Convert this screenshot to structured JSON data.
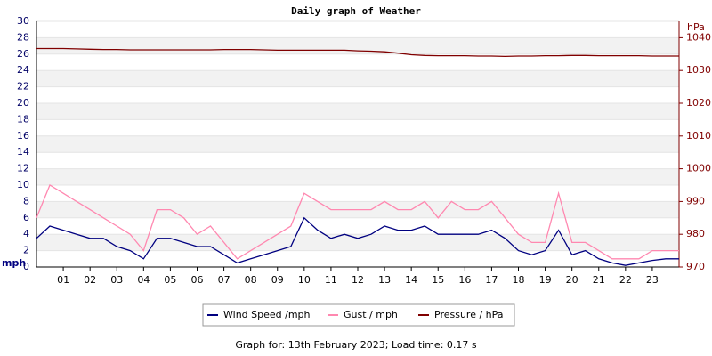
{
  "chart_data": {
    "type": "line",
    "title": "Daily graph of Weather",
    "y_unit": "mph",
    "y2_unit": "hPa",
    "footer": "Graph for: 13th February 2023; Load time: 0.17 s",
    "x": [
      0,
      0.5,
      1,
      1.5,
      2,
      2.5,
      3,
      3.5,
      4,
      4.5,
      5,
      5.5,
      6,
      6.5,
      7,
      7.5,
      8,
      8.5,
      9,
      9.5,
      10,
      10.5,
      11,
      11.5,
      12,
      12.5,
      13,
      13.5,
      14,
      14.5,
      15,
      15.5,
      16,
      16.5,
      17,
      17.5,
      18,
      18.5,
      19,
      19.5,
      20,
      20.5,
      21,
      21.5,
      22,
      22.5,
      23,
      23.5,
      24
    ],
    "xlim": [
      0,
      24
    ],
    "xticks": [
      {
        "value": 1,
        "label": "01"
      },
      {
        "value": 2,
        "label": "02"
      },
      {
        "value": 3,
        "label": "03"
      },
      {
        "value": 4,
        "label": "04"
      },
      {
        "value": 5,
        "label": "05"
      },
      {
        "value": 6,
        "label": "06"
      },
      {
        "value": 7,
        "label": "07"
      },
      {
        "value": 8,
        "label": "08"
      },
      {
        "value": 9,
        "label": "09"
      },
      10,
      11,
      12,
      13,
      14,
      15,
      16,
      17,
      18,
      19,
      20,
      21,
      22,
      23
    ],
    "ylim": [
      0,
      30
    ],
    "yticks": [
      0,
      2,
      4,
      6,
      8,
      10,
      12,
      14,
      16,
      18,
      20,
      22,
      24,
      26,
      28,
      30
    ],
    "y2lim": [
      970,
      1045
    ],
    "y2ticks": [
      970,
      980,
      990,
      1000,
      1010,
      1020,
      1030,
      1040
    ],
    "grid": true,
    "series": [
      {
        "name": "Wind Speed /mph",
        "color": "#000080",
        "values": [
          3.5,
          5,
          4.5,
          4,
          3.5,
          3.5,
          2.5,
          2,
          1,
          3.5,
          3.5,
          3,
          2.5,
          2.5,
          1.5,
          0.5,
          1,
          1.5,
          2,
          2.5,
          6,
          4.5,
          3.5,
          4,
          3.5,
          4,
          5,
          4.5,
          4.5,
          5,
          4,
          4,
          4,
          4,
          4.5,
          3.5,
          2,
          1.5,
          2,
          4.5,
          1.5,
          2,
          1,
          0.5,
          0.2,
          0.5,
          0.8,
          1,
          1
        ]
      },
      {
        "name": "Gust / mph",
        "color": "#ff88b0",
        "values": [
          6,
          10,
          9,
          8,
          7,
          6,
          5,
          4,
          2,
          7,
          7,
          6,
          4,
          5,
          3,
          1,
          2,
          3,
          4,
          5,
          9,
          8,
          7,
          7,
          7,
          7,
          8,
          7,
          7,
          8,
          6,
          8,
          7,
          7,
          8,
          6,
          4,
          3,
          3,
          9,
          3,
          3,
          2,
          1,
          1,
          1,
          2,
          2,
          2
        ]
      },
      {
        "name": "Pressure / hPa",
        "color": "#800000",
        "axis": "y2",
        "values": [
          1036.7,
          1036.7,
          1036.7,
          1036.6,
          1036.5,
          1036.4,
          1036.4,
          1036.3,
          1036.3,
          1036.3,
          1036.3,
          1036.3,
          1036.3,
          1036.3,
          1036.4,
          1036.4,
          1036.4,
          1036.3,
          1036.2,
          1036.2,
          1036.2,
          1036.2,
          1036.2,
          1036.2,
          1036,
          1035.9,
          1035.7,
          1035.3,
          1034.8,
          1034.6,
          1034.5,
          1034.5,
          1034.5,
          1034.4,
          1034.4,
          1034.3,
          1034.4,
          1034.4,
          1034.5,
          1034.5,
          1034.6,
          1034.6,
          1034.5,
          1034.5,
          1034.5,
          1034.5,
          1034.4,
          1034.4,
          1034.4
        ]
      }
    ]
  }
}
